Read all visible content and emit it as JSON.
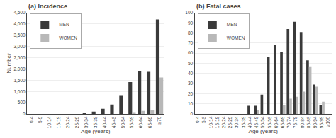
{
  "chart_data": [
    {
      "type": "bar",
      "title": "(a) Incidence",
      "xlabel": "Age (years)",
      "ylabel": "Number",
      "categories": [
        "0-4",
        "5-9",
        "10-14",
        "15-19",
        "20-24",
        "25-29",
        "30-34",
        "35-39",
        "40-44",
        "45-49",
        "50-54",
        "55-59",
        "60-64",
        "65-69",
        "≥70"
      ],
      "series": [
        {
          "name": "MEN",
          "color": "#3a3a3a",
          "values": [
            0,
            0,
            0,
            0,
            0,
            0,
            50,
            100,
            230,
            420,
            830,
            1420,
            1920,
            1870,
            4200
          ]
        },
        {
          "name": "WOMEN",
          "color": "#b8b8b8",
          "values": [
            0,
            0,
            0,
            0,
            0,
            0,
            0,
            0,
            0,
            0,
            0,
            80,
            130,
            180,
            1620
          ]
        }
      ],
      "ylim": [
        0,
        4500
      ],
      "yticks": [
        0,
        500,
        {
          "value": 1000,
          "label": "1,000"
        },
        {
          "value": 1500,
          "label": "1,500"
        },
        {
          "value": 2000,
          "label": "2,000"
        },
        {
          "value": 2500,
          "label": "2,500"
        },
        {
          "value": 3000,
          "label": "3,000"
        },
        {
          "value": 3500,
          "label": "3,500"
        },
        {
          "value": 4000,
          "label": "4,000"
        },
        {
          "value": 4500,
          "label": "4,500"
        }
      ],
      "grid": true,
      "legend": "upper left"
    },
    {
      "type": "bar",
      "title": "(b) Fatal cases",
      "xlabel": "Age (years)",
      "categories": [
        "0-4",
        "5-9",
        "10-14",
        "15-19",
        "20-24",
        "25-29",
        "30-34",
        "35-39",
        "40-44",
        "45-49",
        "50-54",
        "55-59",
        "60-64",
        "65-69",
        "70-74",
        "75-79",
        "80-84",
        "85-89",
        "90-94",
        "95-99",
        "≥100"
      ],
      "series": [
        {
          "name": "MEN",
          "color": "#3a3a3a",
          "values": [
            0,
            0,
            0,
            0,
            0,
            0,
            0,
            0,
            8,
            8,
            19,
            56,
            68,
            61,
            84,
            91,
            81,
            53,
            29,
            9,
            0
          ]
        },
        {
          "name": "WOMEN",
          "color": "#b8b8b8",
          "values": [
            0,
            0,
            0,
            0,
            0,
            0,
            0,
            0,
            0,
            4,
            0,
            0,
            0,
            9,
            15,
            17,
            22,
            47,
            27,
            12,
            0
          ]
        }
      ],
      "ylim": [
        0,
        100
      ],
      "yticks": [
        0,
        10,
        20,
        30,
        40,
        50,
        60,
        70,
        80,
        90,
        100
      ],
      "grid": true,
      "legend": "upper left"
    }
  ]
}
